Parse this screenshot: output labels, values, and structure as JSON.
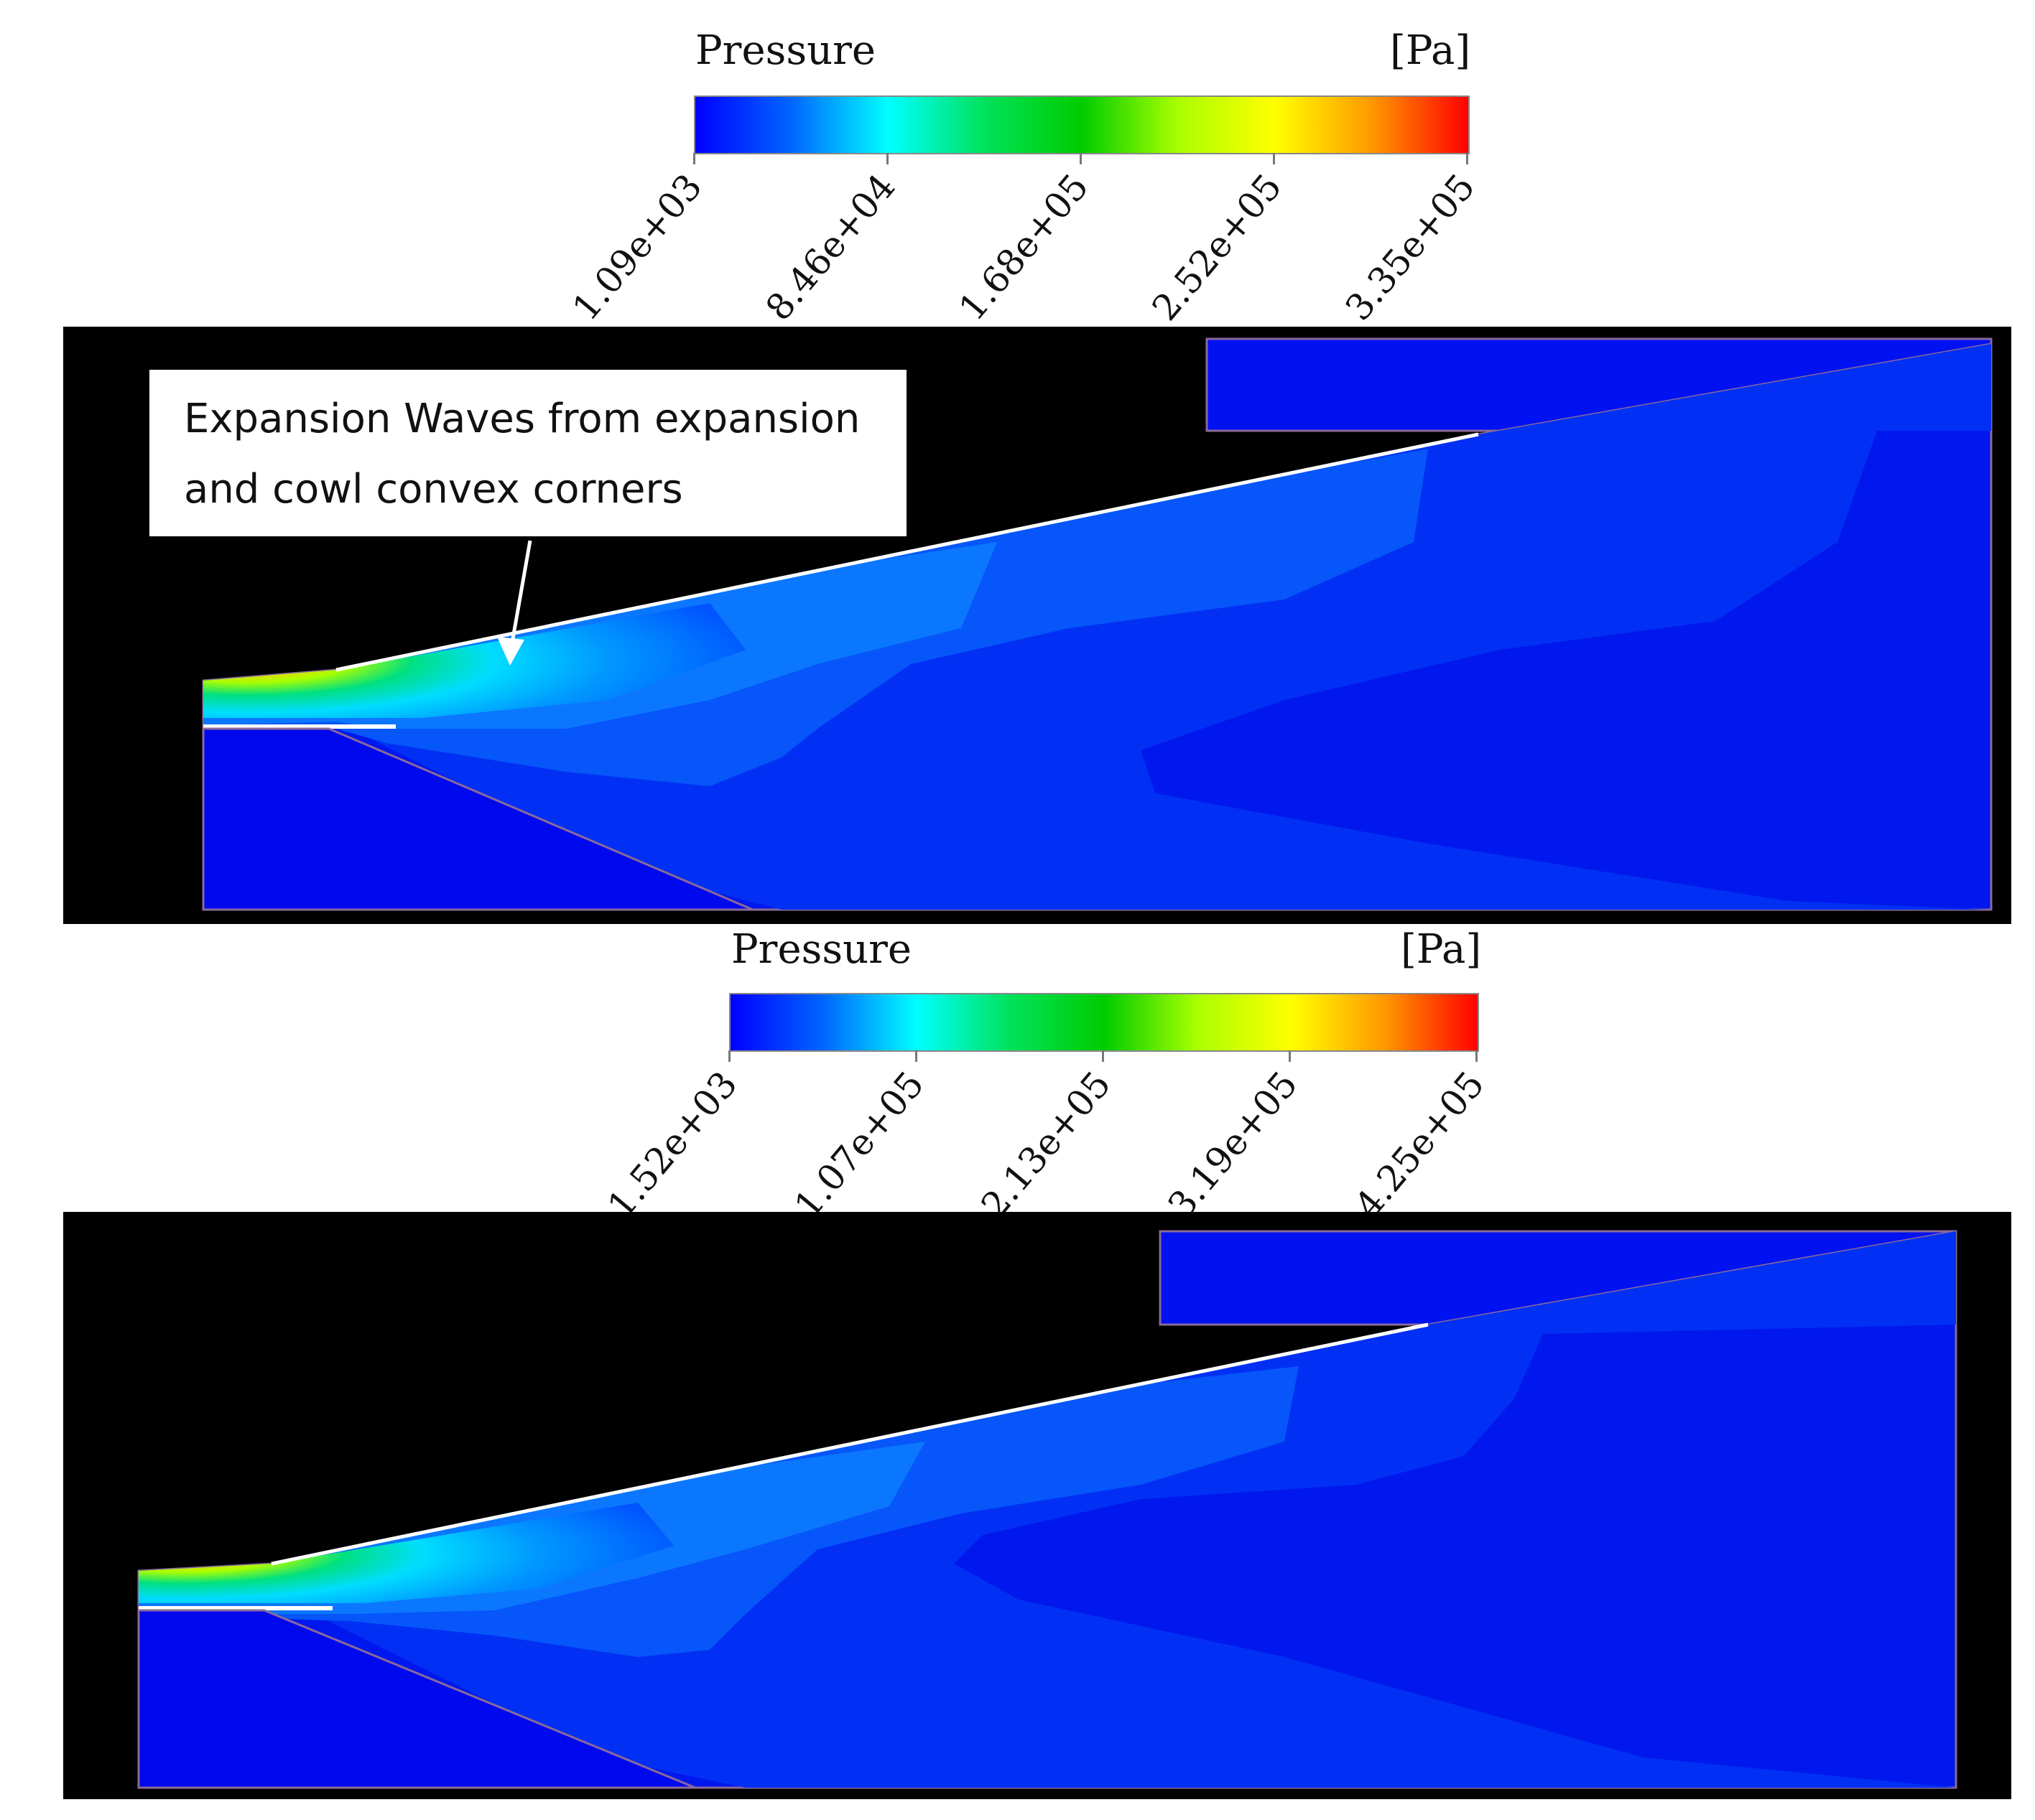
{
  "colormap": [
    "#0000ff",
    "#0066ff",
    "#00ffff",
    "#00e25a",
    "#00cc00",
    "#aaff00",
    "#ffff00",
    "#ff9900",
    "#ff0000"
  ],
  "panels": [
    {
      "legend": {
        "title": "Pressure",
        "unit": "[Pa]",
        "ticks": [
          "1.09e+03",
          "8.46e+04",
          "1.68e+05",
          "2.52e+05",
          "3.35e+05"
        ]
      },
      "annotation": {
        "text_line1": "Expansion Waves from expansion",
        "text_line2": "and cowl convex corners"
      }
    },
    {
      "legend": {
        "title": "Pressure",
        "unit": "[Pa]",
        "ticks": [
          "1.52e+03",
          "1.07e+05",
          "2.13e+05",
          "3.19e+05",
          "4.25e+05"
        ]
      }
    }
  ]
}
